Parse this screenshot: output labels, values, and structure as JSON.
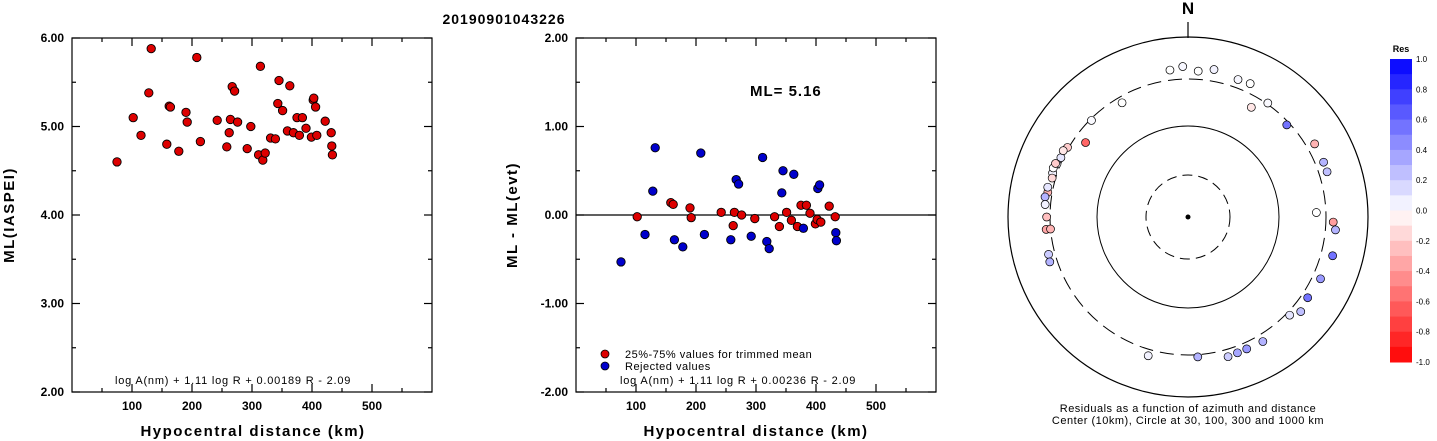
{
  "title": "20190901043226",
  "chart_data": [
    {
      "type": "scatter",
      "xlabel": "Hypocentral distance (km)",
      "ylabel": "ML(IASPEI)",
      "xlim": [
        0,
        600
      ],
      "ylim": [
        2.0,
        6.0
      ],
      "xticks": [
        "100",
        "200",
        "300",
        "400",
        "500"
      ],
      "yticks": [
        "2.00",
        "3.00",
        "4.00",
        "5.00",
        "6.00"
      ],
      "annotation": "log A(nm) + 1.11 log R + 0.00189 R - 2.09",
      "series": [
        {
          "color": "#dd0000",
          "points": [
            [
              75,
              4.6
            ],
            [
              102,
              5.1
            ],
            [
              115,
              4.9
            ],
            [
              128,
              5.38
            ],
            [
              132,
              5.88
            ],
            [
              158,
              4.8
            ],
            [
              162,
              5.23
            ],
            [
              164,
              5.22
            ],
            [
              178,
              4.72
            ],
            [
              190,
              5.16
            ],
            [
              192,
              5.05
            ],
            [
              208,
              5.78
            ],
            [
              214,
              4.83
            ],
            [
              242,
              5.07
            ],
            [
              258,
              4.77
            ],
            [
              262,
              4.93
            ],
            [
              264,
              5.08
            ],
            [
              267,
              5.45
            ],
            [
              271,
              5.4
            ],
            [
              276,
              5.05
            ],
            [
              292,
              4.75
            ],
            [
              298,
              5.0
            ],
            [
              311,
              4.68
            ],
            [
              314,
              5.68
            ],
            [
              318,
              4.62
            ],
            [
              322,
              4.7
            ],
            [
              331,
              4.87
            ],
            [
              339,
              4.86
            ],
            [
              343,
              5.26
            ],
            [
              345,
              5.52
            ],
            [
              351,
              5.18
            ],
            [
              359,
              4.95
            ],
            [
              363,
              5.46
            ],
            [
              369,
              4.93
            ],
            [
              375,
              5.1
            ],
            [
              379,
              4.9
            ],
            [
              384,
              5.1
            ],
            [
              390,
              4.98
            ],
            [
              399,
              4.88
            ],
            [
              402,
              5.3
            ],
            [
              403,
              5.32
            ],
            [
              406,
              5.22
            ],
            [
              408,
              4.9
            ],
            [
              422,
              5.06
            ],
            [
              432,
              4.93
            ],
            [
              433,
              4.78
            ],
            [
              434,
              4.68
            ]
          ]
        }
      ]
    },
    {
      "type": "scatter",
      "xlabel": "Hypocentral distance (km)",
      "ylabel": "ML - ML(evt)",
      "xlim": [
        0,
        600
      ],
      "ylim": [
        -2.0,
        2.0
      ],
      "xticks": [
        "100",
        "200",
        "300",
        "400",
        "500"
      ],
      "yticks": [
        "-2.00",
        "-1.00",
        "0.00",
        "1.00",
        "2.00"
      ],
      "annotation": "log A(nm) + 1.11 log R + 0.00236 R - 2.09",
      "ml_label": "ML= 5.16",
      "reference_line": 0.0,
      "legend": [
        "25%-75% values for trimmed mean",
        "Rejected values"
      ],
      "series": [
        {
          "name": "25%-75% values for trimmed mean",
          "color": "#dd0000",
          "points": [
            [
              102,
              -0.02
            ],
            [
              158,
              0.14
            ],
            [
              162,
              0.12
            ],
            [
              190,
              0.08
            ],
            [
              192,
              -0.03
            ],
            [
              242,
              0.03
            ],
            [
              262,
              -0.12
            ],
            [
              264,
              0.03
            ],
            [
              276,
              0.0
            ],
            [
              298,
              -0.04
            ],
            [
              331,
              -0.02
            ],
            [
              339,
              -0.13
            ],
            [
              351,
              0.03
            ],
            [
              359,
              -0.06
            ],
            [
              369,
              -0.13
            ],
            [
              375,
              0.11
            ],
            [
              384,
              0.11
            ],
            [
              390,
              0.02
            ],
            [
              399,
              -0.1
            ],
            [
              402,
              -0.05
            ],
            [
              408,
              -0.08
            ],
            [
              422,
              0.1
            ],
            [
              432,
              -0.02
            ]
          ]
        },
        {
          "name": "Rejected values",
          "color": "#0000cc",
          "points": [
            [
              75,
              -0.53
            ],
            [
              115,
              -0.22
            ],
            [
              128,
              0.27
            ],
            [
              132,
              0.76
            ],
            [
              164,
              -0.28
            ],
            [
              178,
              -0.36
            ],
            [
              208,
              0.7
            ],
            [
              214,
              -0.22
            ],
            [
              258,
              -0.28
            ],
            [
              267,
              0.4
            ],
            [
              271,
              0.35
            ],
            [
              292,
              -0.24
            ],
            [
              311,
              0.65
            ],
            [
              318,
              -0.3
            ],
            [
              322,
              -0.38
            ],
            [
              343,
              0.25
            ],
            [
              345,
              0.5
            ],
            [
              363,
              0.46
            ],
            [
              379,
              -0.15
            ],
            [
              403,
              0.3
            ],
            [
              406,
              0.34
            ],
            [
              433,
              -0.2
            ],
            [
              434,
              -0.29
            ]
          ]
        }
      ]
    },
    {
      "type": "polar_scatter",
      "north_label": "N",
      "caption_line1": "Residuals as a function of azimuth and distance",
      "caption_line2": "Center (10km), Circle at 30, 100, 300 and 1000 km",
      "colorbar_title": "Res",
      "colorbar_ticks": [
        "1.0",
        "0.8",
        "0.6",
        "0.4",
        "0.2",
        "0.0",
        "-0.2",
        "-0.4",
        "-0.6",
        "-0.8",
        "-1.0"
      ],
      "circles_km": [
        30,
        100,
        300,
        1000
      ],
      "points": [
        {
          "az": 68,
          "dist": 380,
          "res": 0.3
        },
        {
          "az": 72,
          "dist": 380,
          "res": 0.25
        },
        {
          "az": 92,
          "dist": 370,
          "res": -0.38
        },
        {
          "az": 95,
          "dist": 400,
          "res": 0.3
        },
        {
          "az": 105,
          "dist": 420,
          "res": 0.55
        },
        {
          "az": 115,
          "dist": 380,
          "res": 0.4
        },
        {
          "az": 124,
          "dist": 360,
          "res": 0.55
        },
        {
          "az": 130,
          "dist": 390,
          "res": 0.25
        },
        {
          "az": 134,
          "dist": 330,
          "res": 0.1
        },
        {
          "az": 149,
          "dist": 370,
          "res": 0.3
        },
        {
          "az": 156,
          "dist": 360,
          "res": 0.4
        },
        {
          "az": 160,
          "dist": 362,
          "res": 0.35
        },
        {
          "az": 164,
          "dist": 370,
          "res": 0.2
        },
        {
          "az": 88,
          "dist": 240,
          "res": 0.0
        },
        {
          "az": 358,
          "dist": 430,
          "res": 0.03
        },
        {
          "az": 353,
          "dist": 400,
          "res": 0.0
        },
        {
          "az": 10,
          "dist": 420,
          "res": 0.05
        },
        {
          "az": 20,
          "dist": 380,
          "res": 0.03
        },
        {
          "az": 35,
          "dist": 310,
          "res": 0.02
        },
        {
          "az": 47,
          "dist": 280,
          "res": 0.55
        },
        {
          "az": 4,
          "dist": 380,
          "res": 0.0
        },
        {
          "az": 25,
          "dist": 390,
          "res": 0.0
        },
        {
          "az": 30,
          "dist": 230,
          "res": -0.1
        },
        {
          "az": 60,
          "dist": 380,
          "res": -0.3
        },
        {
          "az": 306,
          "dist": 230,
          "res": -0.6
        },
        {
          "az": 330,
          "dist": 260,
          "res": 0.0
        },
        {
          "az": 315,
          "dist": 290,
          "res": 0.02
        },
        {
          "az": 300,
          "dist": 310,
          "res": -0.2
        },
        {
          "az": 295,
          "dist": 320,
          "res": 0.1
        },
        {
          "az": 292,
          "dist": 330,
          "res": 0.03
        },
        {
          "az": 298,
          "dist": 330,
          "res": -0.1
        },
        {
          "az": 288,
          "dist": 340,
          "res": 0.05
        },
        {
          "az": 290,
          "dist": 350,
          "res": 0.0
        },
        {
          "az": 292,
          "dist": 345,
          "res": -0.2
        },
        {
          "az": 286,
          "dist": 330,
          "res": -0.15
        },
        {
          "az": 280,
          "dist": 340,
          "res": -0.3
        },
        {
          "az": 282,
          "dist": 350,
          "res": 0.1
        },
        {
          "az": 278,
          "dist": 360,
          "res": 0.3
        },
        {
          "az": 275,
          "dist": 350,
          "res": 0.05
        },
        {
          "az": 270,
          "dist": 330,
          "res": -0.25
        },
        {
          "az": 265,
          "dist": 340,
          "res": -0.35
        },
        {
          "az": 255,
          "dist": 360,
          "res": 0.2
        },
        {
          "az": 252,
          "dist": 370,
          "res": 0.3
        },
        {
          "az": 265,
          "dist": 300,
          "res": -0.3
        },
        {
          "az": 196,
          "dist": 360,
          "res": 0.05
        },
        {
          "az": 176,
          "dist": 320,
          "res": 0.3
        }
      ]
    }
  ]
}
